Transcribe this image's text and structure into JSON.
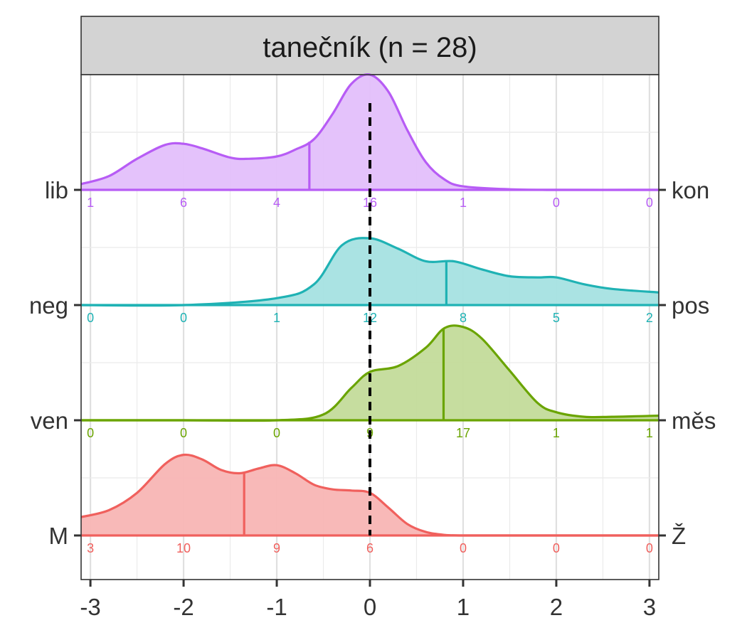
{
  "chart_data": {
    "type": "ridgeline",
    "panel_title": "tanečník (n = 28)",
    "xlim": [
      -3.1,
      3.1
    ],
    "x_ticks": [
      "-3",
      "-2",
      "-1",
      "0",
      "1",
      "2",
      "3"
    ],
    "x_tick_values": [
      -3,
      -2,
      -1,
      0,
      1,
      2,
      3
    ],
    "reference_line_x": 0,
    "count_positions": [
      -3,
      -2,
      -1,
      0,
      1,
      2,
      3
    ],
    "grid": true,
    "series": [
      {
        "left_label": "M",
        "right_label": "Ž",
        "color": "#F0605D",
        "fill": "#F8B5B4",
        "median": -1.35,
        "counts": [
          3,
          10,
          9,
          6,
          0,
          0,
          0
        ],
        "density_x": [
          -3.1,
          -2.8,
          -2.5,
          -2.2,
          -2.0,
          -1.8,
          -1.6,
          -1.4,
          -1.2,
          -1.0,
          -0.8,
          -0.6,
          -0.4,
          -0.2,
          0.0,
          0.2,
          0.4,
          0.6,
          0.8,
          1.0,
          1.5,
          2.0,
          2.5,
          3.1
        ],
        "density_y": [
          0.16,
          0.22,
          0.37,
          0.62,
          0.7,
          0.66,
          0.57,
          0.54,
          0.58,
          0.61,
          0.54,
          0.44,
          0.4,
          0.39,
          0.37,
          0.24,
          0.1,
          0.03,
          0.005,
          0.0,
          0.0,
          0.0,
          0.0,
          0.0
        ]
      },
      {
        "left_label": "ven",
        "right_label": "měs",
        "color": "#6AA400",
        "fill": "#C3DB9A",
        "median": 0.79,
        "counts": [
          0,
          0,
          0,
          9,
          17,
          1,
          1
        ],
        "density_x": [
          -3.1,
          -2.0,
          -1.0,
          -0.5,
          -0.2,
          0.0,
          0.3,
          0.6,
          0.8,
          1.0,
          1.2,
          1.5,
          1.8,
          2.0,
          2.3,
          2.6,
          3.1
        ],
        "density_y": [
          0.0,
          0.0,
          0.0,
          0.05,
          0.28,
          0.42,
          0.47,
          0.63,
          0.8,
          0.81,
          0.71,
          0.43,
          0.15,
          0.07,
          0.03,
          0.03,
          0.04
        ]
      },
      {
        "left_label": "neg",
        "right_label": "pos",
        "color": "#1FB2B4",
        "fill": "#A5E1E1",
        "median": 0.82,
        "counts": [
          0,
          0,
          1,
          12,
          8,
          5,
          2
        ],
        "density_x": [
          -3.1,
          -2.0,
          -1.0,
          -0.6,
          -0.3,
          0.0,
          0.3,
          0.6,
          0.9,
          1.2,
          1.5,
          1.8,
          2.0,
          2.3,
          2.6,
          3.1
        ],
        "density_y": [
          0.0,
          0.0,
          0.06,
          0.18,
          0.52,
          0.58,
          0.49,
          0.38,
          0.38,
          0.31,
          0.25,
          0.24,
          0.24,
          0.18,
          0.14,
          0.11
        ]
      },
      {
        "left_label": "lib",
        "right_label": "kon",
        "color": "#B75CF5",
        "fill": "#E3BFFB",
        "median": -0.65,
        "counts": [
          1,
          6,
          4,
          16,
          1,
          0,
          0
        ],
        "density_x": [
          -3.1,
          -2.8,
          -2.5,
          -2.2,
          -2.0,
          -1.8,
          -1.5,
          -1.3,
          -1.0,
          -0.8,
          -0.6,
          -0.4,
          -0.2,
          0.0,
          0.2,
          0.4,
          0.6,
          0.8,
          1.0,
          1.5,
          2.0,
          3.1
        ],
        "density_y": [
          0.05,
          0.12,
          0.27,
          0.39,
          0.4,
          0.36,
          0.28,
          0.27,
          0.29,
          0.35,
          0.44,
          0.66,
          0.92,
          1.0,
          0.85,
          0.52,
          0.24,
          0.09,
          0.03,
          0.005,
          0.0,
          0.0
        ]
      }
    ]
  }
}
